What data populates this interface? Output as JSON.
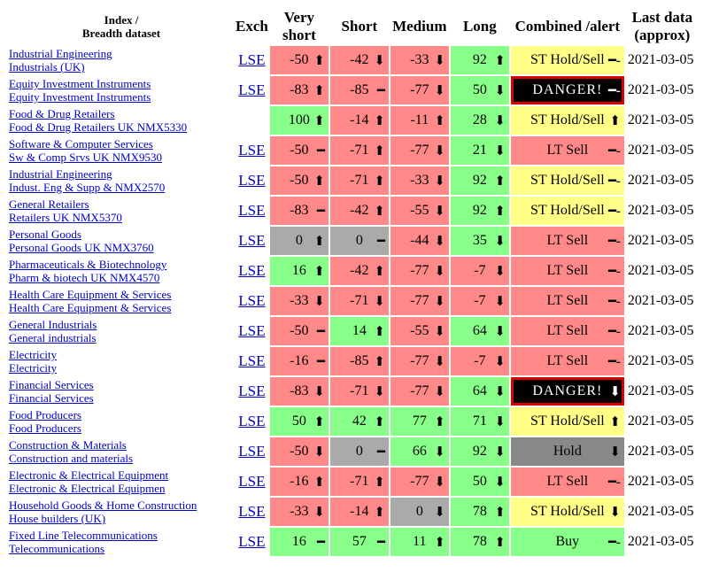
{
  "headers": {
    "index_line1": "Index /",
    "index_line2": "Breadth dataset",
    "exch": "Exch",
    "very_short_line1": "Very",
    "very_short_line2": "short",
    "short": "Short",
    "medium": "Medium",
    "long": "Long",
    "combined": "Combined /alert",
    "last_line1": "Last data",
    "last_line2": "(approx)"
  },
  "colors": {
    "red": "#ff8888",
    "green": "#88ff88",
    "gray": "#aaaaaa",
    "yellow": "#ffff88",
    "hold": "#888888",
    "danger_bg": "#000000",
    "danger_border": "#dd0000",
    "link": "#0000cc"
  },
  "rows": [
    {
      "name1": "Industrial Engineering",
      "name2": "Industrials (UK)",
      "exch": "LSE",
      "vs": {
        "val": "-50",
        "c": "red",
        "a": "⬆"
      },
      "s": {
        "val": "-42",
        "c": "red",
        "a": "⬇"
      },
      "m": {
        "val": "-33",
        "c": "red",
        "a": "⬇"
      },
      "l": {
        "val": "92",
        "c": "green",
        "a": "⬆"
      },
      "comb": {
        "text": "ST Hold/Sell",
        "c": "yellow",
        "a": "━-"
      },
      "date": "2021-03-05"
    },
    {
      "name1": "Equity Investment Instruments",
      "name2": "Equity Investment Instruments",
      "exch": "LSE",
      "vs": {
        "val": "-83",
        "c": "red",
        "a": "⬆"
      },
      "s": {
        "val": "-85",
        "c": "red",
        "a": "━"
      },
      "m": {
        "val": "-77",
        "c": "red",
        "a": "⬇"
      },
      "l": {
        "val": "50",
        "c": "green",
        "a": "⬇"
      },
      "comb": {
        "text": "DANGER!",
        "c": "danger",
        "a": "━-"
      },
      "date": "2021-03-05"
    },
    {
      "name1": "Food & Drug Retailers",
      "name2": "Food & Drug Retailers UK NMX5330",
      "exch": "",
      "vs": {
        "val": "100",
        "c": "green",
        "a": "⬆"
      },
      "s": {
        "val": "-14",
        "c": "red",
        "a": "⬆"
      },
      "m": {
        "val": "-11",
        "c": "red",
        "a": "⬆"
      },
      "l": {
        "val": "28",
        "c": "green",
        "a": "⬇"
      },
      "comb": {
        "text": "ST Hold/Sell",
        "c": "yellow",
        "a": "⬆"
      },
      "date": "2021-03-05"
    },
    {
      "name1": "Software & Computer Services",
      "name2": "Sw & Comp Srvs UK NMX9530",
      "exch": "LSE",
      "vs": {
        "val": "-50",
        "c": "red",
        "a": "━"
      },
      "s": {
        "val": "-71",
        "c": "red",
        "a": "⬆"
      },
      "m": {
        "val": "-77",
        "c": "red",
        "a": "⬇"
      },
      "l": {
        "val": "21",
        "c": "green",
        "a": "⬇"
      },
      "comb": {
        "text": "LT Sell",
        "c": "red",
        "a": "━-"
      },
      "date": "2021-03-05"
    },
    {
      "name1": "Industrial Engineering",
      "name2": "Indust. Eng & Supp & NMX2570",
      "exch": "LSE",
      "vs": {
        "val": "-50",
        "c": "red",
        "a": "⬆"
      },
      "s": {
        "val": "-71",
        "c": "red",
        "a": "⬆"
      },
      "m": {
        "val": "-33",
        "c": "red",
        "a": "⬇"
      },
      "l": {
        "val": "92",
        "c": "green",
        "a": "⬆"
      },
      "comb": {
        "text": "ST Hold/Sell",
        "c": "yellow",
        "a": "━-"
      },
      "date": "2021-03-05"
    },
    {
      "name1": "General Retailers",
      "name2": "Retailers UK NMX5370",
      "exch": "LSE",
      "vs": {
        "val": "-83",
        "c": "red",
        "a": "━"
      },
      "s": {
        "val": "-42",
        "c": "red",
        "a": "⬆"
      },
      "m": {
        "val": "-55",
        "c": "red",
        "a": "⬇"
      },
      "l": {
        "val": "92",
        "c": "green",
        "a": "⬆"
      },
      "comb": {
        "text": "ST Hold/Sell",
        "c": "yellow",
        "a": "━-"
      },
      "date": "2021-03-05"
    },
    {
      "name1": "Personal Goods",
      "name2": "Personal Goods UK NMX3760",
      "exch": "LSE",
      "vs": {
        "val": "0",
        "c": "gray",
        "a": "⬆"
      },
      "s": {
        "val": "0",
        "c": "gray",
        "a": "━"
      },
      "m": {
        "val": "-44",
        "c": "red",
        "a": "⬇"
      },
      "l": {
        "val": "35",
        "c": "green",
        "a": "⬇"
      },
      "comb": {
        "text": "LT Sell",
        "c": "red",
        "a": "━-"
      },
      "date": "2021-03-05"
    },
    {
      "name1": "Pharmaceuticals & Biotechnology",
      "name2": "Pharm & biotech UK NMX4570",
      "exch": "LSE",
      "vs": {
        "val": "16",
        "c": "green",
        "a": "⬆"
      },
      "s": {
        "val": "-42",
        "c": "red",
        "a": "⬆"
      },
      "m": {
        "val": "-77",
        "c": "red",
        "a": "⬇"
      },
      "l": {
        "val": "-7",
        "c": "red",
        "a": "⬇"
      },
      "comb": {
        "text": "LT Sell",
        "c": "red",
        "a": "━-"
      },
      "date": "2021-03-05"
    },
    {
      "name1": "Health Care Equipment & Services",
      "name2": "Health Care Equipment & Services",
      "exch": "LSE",
      "vs": {
        "val": "-33",
        "c": "red",
        "a": "⬇"
      },
      "s": {
        "val": "-71",
        "c": "red",
        "a": "⬇"
      },
      "m": {
        "val": "-77",
        "c": "red",
        "a": "⬇"
      },
      "l": {
        "val": "-7",
        "c": "red",
        "a": "⬇"
      },
      "comb": {
        "text": "LT Sell",
        "c": "red",
        "a": "━-"
      },
      "date": "2021-03-05"
    },
    {
      "name1": "General Industrials",
      "name2": "General industrials",
      "exch": "LSE",
      "vs": {
        "val": "-50",
        "c": "red",
        "a": "━"
      },
      "s": {
        "val": "14",
        "c": "green",
        "a": "⬆"
      },
      "m": {
        "val": "-55",
        "c": "red",
        "a": "⬇"
      },
      "l": {
        "val": "64",
        "c": "green",
        "a": "⬇"
      },
      "comb": {
        "text": "LT Sell",
        "c": "red",
        "a": "━-"
      },
      "date": "2021-03-05"
    },
    {
      "name1": "Electricity",
      "name2": "Electricity",
      "exch": "LSE",
      "vs": {
        "val": "-16",
        "c": "red",
        "a": "━"
      },
      "s": {
        "val": "-85",
        "c": "red",
        "a": "⬆"
      },
      "m": {
        "val": "-77",
        "c": "red",
        "a": "⬇"
      },
      "l": {
        "val": "-7",
        "c": "red",
        "a": "⬇"
      },
      "comb": {
        "text": "LT Sell",
        "c": "red",
        "a": "━-"
      },
      "date": "2021-03-05"
    },
    {
      "name1": "Financial Services",
      "name2": "Financial Services",
      "exch": "LSE",
      "vs": {
        "val": "-83",
        "c": "red",
        "a": "⬇"
      },
      "s": {
        "val": "-71",
        "c": "red",
        "a": "⬇"
      },
      "m": {
        "val": "-77",
        "c": "red",
        "a": "⬇"
      },
      "l": {
        "val": "64",
        "c": "green",
        "a": "⬇"
      },
      "comb": {
        "text": "DANGER!",
        "c": "danger",
        "a": "⬇"
      },
      "date": "2021-03-05"
    },
    {
      "name1": "Food Producers",
      "name2": "Food Producers",
      "exch": "LSE",
      "vs": {
        "val": "50",
        "c": "green",
        "a": "⬆"
      },
      "s": {
        "val": "42",
        "c": "green",
        "a": "⬆"
      },
      "m": {
        "val": "77",
        "c": "green",
        "a": "⬆"
      },
      "l": {
        "val": "71",
        "c": "green",
        "a": "⬇"
      },
      "comb": {
        "text": "ST Hold/Sell",
        "c": "yellow",
        "a": "⬆"
      },
      "date": "2021-03-05"
    },
    {
      "name1": "Construction & Materials",
      "name2": "Construction and materials",
      "exch": "LSE",
      "vs": {
        "val": "-50",
        "c": "red",
        "a": "⬇"
      },
      "s": {
        "val": "0",
        "c": "gray",
        "a": "━"
      },
      "m": {
        "val": "66",
        "c": "green",
        "a": "⬇"
      },
      "l": {
        "val": "92",
        "c": "green",
        "a": "⬇"
      },
      "comb": {
        "text": "Hold",
        "c": "holdgray",
        "a": "⬇"
      },
      "date": "2021-03-05"
    },
    {
      "name1": "Electronic & Electrical Equipment",
      "name2": "Electronic & Electrical Equipmen",
      "exch": "LSE",
      "vs": {
        "val": "-16",
        "c": "red",
        "a": "⬆"
      },
      "s": {
        "val": "-71",
        "c": "red",
        "a": "⬆"
      },
      "m": {
        "val": "-77",
        "c": "red",
        "a": "⬇"
      },
      "l": {
        "val": "50",
        "c": "green",
        "a": "⬇"
      },
      "comb": {
        "text": "LT Sell",
        "c": "red",
        "a": "━-"
      },
      "date": "2021-03-05"
    },
    {
      "name1": "Household Goods & Home Construction",
      "name2": "House builders (UK)",
      "exch": "LSE",
      "vs": {
        "val": "-33",
        "c": "red",
        "a": "⬇"
      },
      "s": {
        "val": "-14",
        "c": "red",
        "a": "⬆"
      },
      "m": {
        "val": "0",
        "c": "gray",
        "a": "⬇"
      },
      "l": {
        "val": "78",
        "c": "green",
        "a": "⬆"
      },
      "comb": {
        "text": "ST Hold/Sell",
        "c": "yellow",
        "a": "⬇"
      },
      "date": "2021-03-05"
    },
    {
      "name1": "Fixed Line Telecommunications",
      "name2": "Telecommunications",
      "exch": "LSE",
      "vs": {
        "val": "16",
        "c": "green",
        "a": "━"
      },
      "s": {
        "val": "57",
        "c": "green",
        "a": "━"
      },
      "m": {
        "val": "11",
        "c": "green",
        "a": "⬆"
      },
      "l": {
        "val": "78",
        "c": "green",
        "a": "⬆"
      },
      "comb": {
        "text": "Buy",
        "c": "green",
        "a": "━-"
      },
      "date": "2021-03-05"
    }
  ]
}
